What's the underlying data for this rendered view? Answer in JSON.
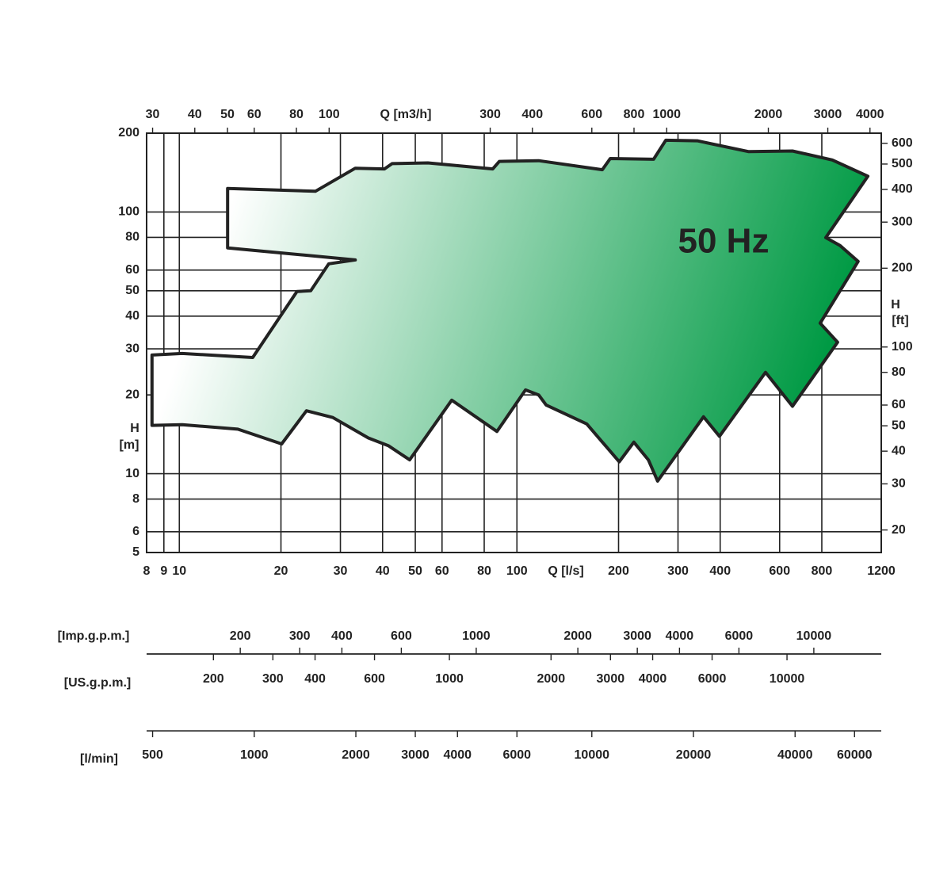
{
  "chart_data": {
    "type": "area",
    "annotation": "50 Hz",
    "log_scale": true,
    "grid": true,
    "color": "#009a44",
    "xlabel": "Q [l/s]",
    "x2label": "Q [m3/h]",
    "ylabel": [
      "H",
      "[m]"
    ],
    "y2label": [
      "H",
      "[ft]"
    ],
    "xlim": [
      8,
      1200
    ],
    "xticks": [
      8,
      9,
      10,
      20,
      30,
      40,
      50,
      60,
      80,
      100,
      200,
      300,
      400,
      600,
      800,
      1200
    ],
    "x2lim": [
      28.8,
      4320
    ],
    "x2ticks": [
      30,
      40,
      50,
      60,
      80,
      100,
      300,
      400,
      600,
      800,
      1000,
      2000,
      3000,
      4000
    ],
    "ylim": [
      5,
      200
    ],
    "yticks": [
      5,
      6,
      8,
      10,
      20,
      30,
      40,
      50,
      60,
      80,
      100,
      200
    ],
    "y2lim": [
      16.4,
      656
    ],
    "y2ticks": [
      20,
      30,
      40,
      50,
      60,
      80,
      100,
      200,
      300,
      400,
      500,
      600
    ],
    "x": [
      8.3,
      10.2,
      16.5,
      22.3,
      24.5,
      27.7,
      33.2,
      13.9,
      13.9,
      25.3,
      33.2,
      40.5,
      42.7,
      54.5,
      84.8,
      88.7,
      116,
      179,
      189,
      254,
      276,
      342,
      486,
      655,
      859,
      1095,
      822,
      906,
      1025,
      791,
      891,
      655,
      545,
      398,
      357,
      261,
      245,
      222,
      201,
      161,
      122,
      116,
      106,
      87.3,
      64.1,
      48.1,
      41.6,
      36.3,
      28.5,
      23.8,
      20.1,
      14.9,
      10.2,
      8.3
    ],
    "values": [
      28.4,
      28.8,
      27.8,
      49.7,
      50,
      63.4,
      65.6,
      72.9,
      123,
      120,
      147,
      146,
      153,
      154,
      146,
      156,
      157,
      145,
      160,
      159,
      188,
      187,
      170,
      171,
      158,
      137,
      79.8,
      74.4,
      64.7,
      37.6,
      31.8,
      18.1,
      24.4,
      13.9,
      16.5,
      9.37,
      11.3,
      13.2,
      11.1,
      15.5,
      18.3,
      20.0,
      20.9,
      14.5,
      19.1,
      11.3,
      12.8,
      13.7,
      16.4,
      17.4,
      13.0,
      14.8,
      15.4,
      15.3
    ],
    "flow_scales": [
      {
        "label": "[Imp.g.p.m.]",
        "lim": [
          105.6,
          15840
        ],
        "ticks": [
          200,
          300,
          400,
          600,
          1000,
          2000,
          3000,
          4000,
          6000,
          10000
        ]
      },
      {
        "label": "[US.g.p.m.]",
        "lim": [
          126.8,
          19020
        ],
        "ticks": [
          200,
          300,
          400,
          600,
          1000,
          2000,
          3000,
          4000,
          6000,
          10000
        ]
      },
      {
        "label": "[l/min]",
        "lim": [
          480,
          72000
        ],
        "ticks": [
          500,
          1000,
          2000,
          3000,
          4000,
          6000,
          10000,
          20000,
          40000,
          60000
        ]
      }
    ]
  }
}
